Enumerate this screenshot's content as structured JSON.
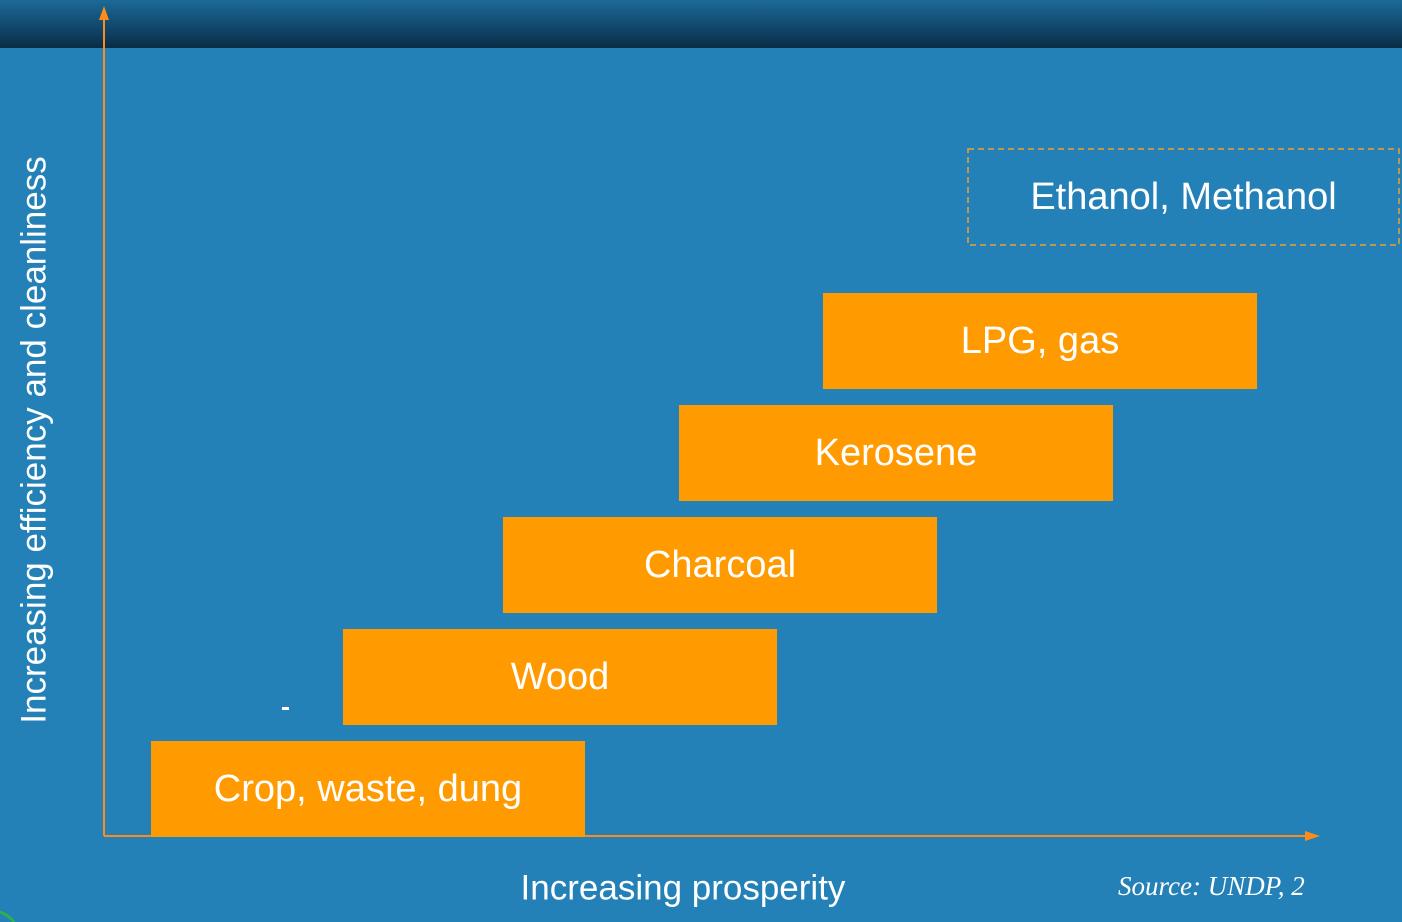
{
  "diagram": {
    "y_axis_label": "Increasing efficiency and cleanliness",
    "x_axis_label": "Increasing prosperity",
    "source": "Source: UNDP, 2",
    "steps": [
      {
        "label": "Crop, waste, dung"
      },
      {
        "label": "Wood"
      },
      {
        "label": "Charcoal"
      },
      {
        "label": "Kerosene"
      },
      {
        "label": "LPG, gas"
      },
      {
        "label": "Ethanol, Methanol"
      }
    ]
  }
}
